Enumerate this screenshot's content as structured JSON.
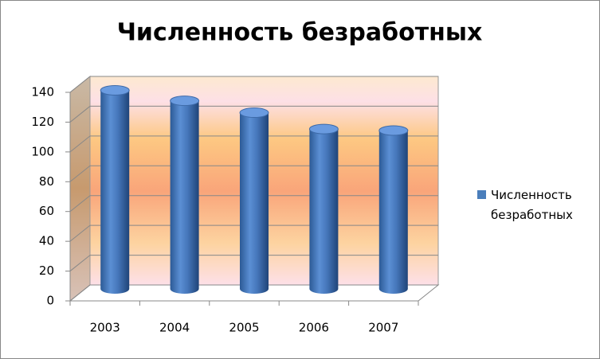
{
  "chart_data": {
    "type": "bar",
    "title": "Численность безработных",
    "categories": [
      "2003",
      "2004",
      "2005",
      "2006",
      "2007"
    ],
    "series": [
      {
        "name": "Численность безработных",
        "color": "#4a7ebb",
        "values": [
          136,
          129,
          121,
          110,
          109
        ]
      }
    ],
    "ylim": [
      0,
      140
    ],
    "yticks": [
      0,
      20,
      40,
      60,
      80,
      100,
      120,
      140
    ],
    "grid": true,
    "legend": "right"
  }
}
